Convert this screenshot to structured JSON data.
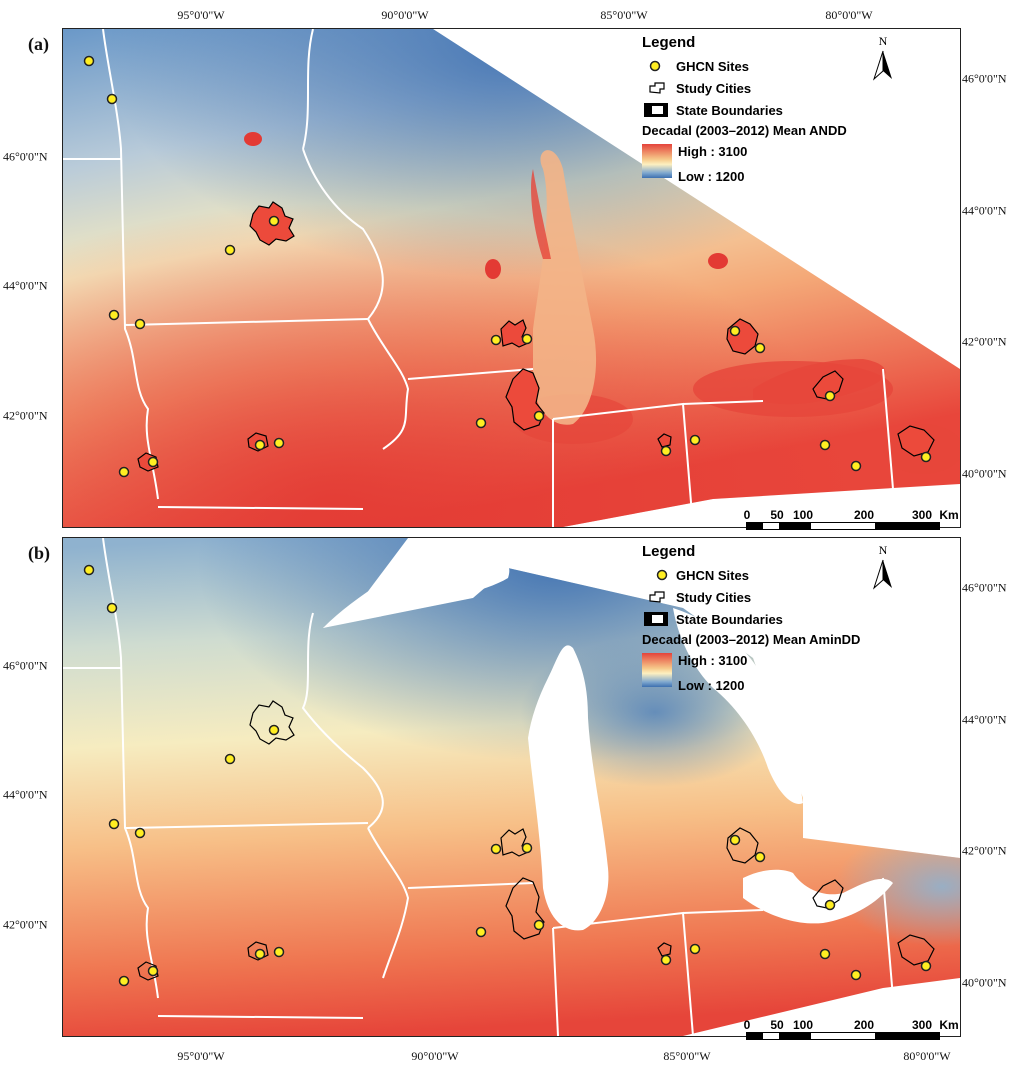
{
  "panel_a": {
    "label": "(a)",
    "legend_title": "Legend",
    "legend_sites": "GHCN Sites",
    "legend_cities": "Study Cities",
    "legend_states": "State Boundaries",
    "variable_title": "Decadal (2003–2012) Mean ANDD",
    "high_label": "High : 3100",
    "low_label": "Low : 1200"
  },
  "panel_b": {
    "label": "(b)",
    "legend_title": "Legend",
    "legend_sites": "GHCN Sites",
    "legend_cities": "Study Cities",
    "legend_states": "State Boundaries",
    "variable_title": "Decadal (2003–2012) Mean AminDD",
    "high_label": "High : 3100",
    "low_label": "Low : 1200"
  },
  "axes": {
    "lon_ticks": [
      "95°0'0\"W",
      "90°0'0\"W",
      "85°0'0\"W",
      "80°0'0\"W"
    ],
    "lat_ticks_left": [
      "46°0'0\"N",
      "44°0'0\"N",
      "42°0'0\"N"
    ],
    "lat_ticks_right": [
      "46°0'0\"N",
      "44°0'0\"N",
      "42°0'0\"N",
      "40°0'0\"N"
    ]
  },
  "north_arrow": {
    "label": "N",
    "icon": "north-arrow-icon"
  },
  "scale_bar": {
    "ticks": [
      "0",
      "50",
      "100",
      "200",
      "300"
    ],
    "unit": "Km"
  },
  "colors": {
    "high": "#e4433b",
    "mid": "#fdf0c0",
    "low": "#3d6fb0",
    "site_fill": "#ffee22",
    "boundary": "#ffffff",
    "city_outline": "#000000"
  }
}
